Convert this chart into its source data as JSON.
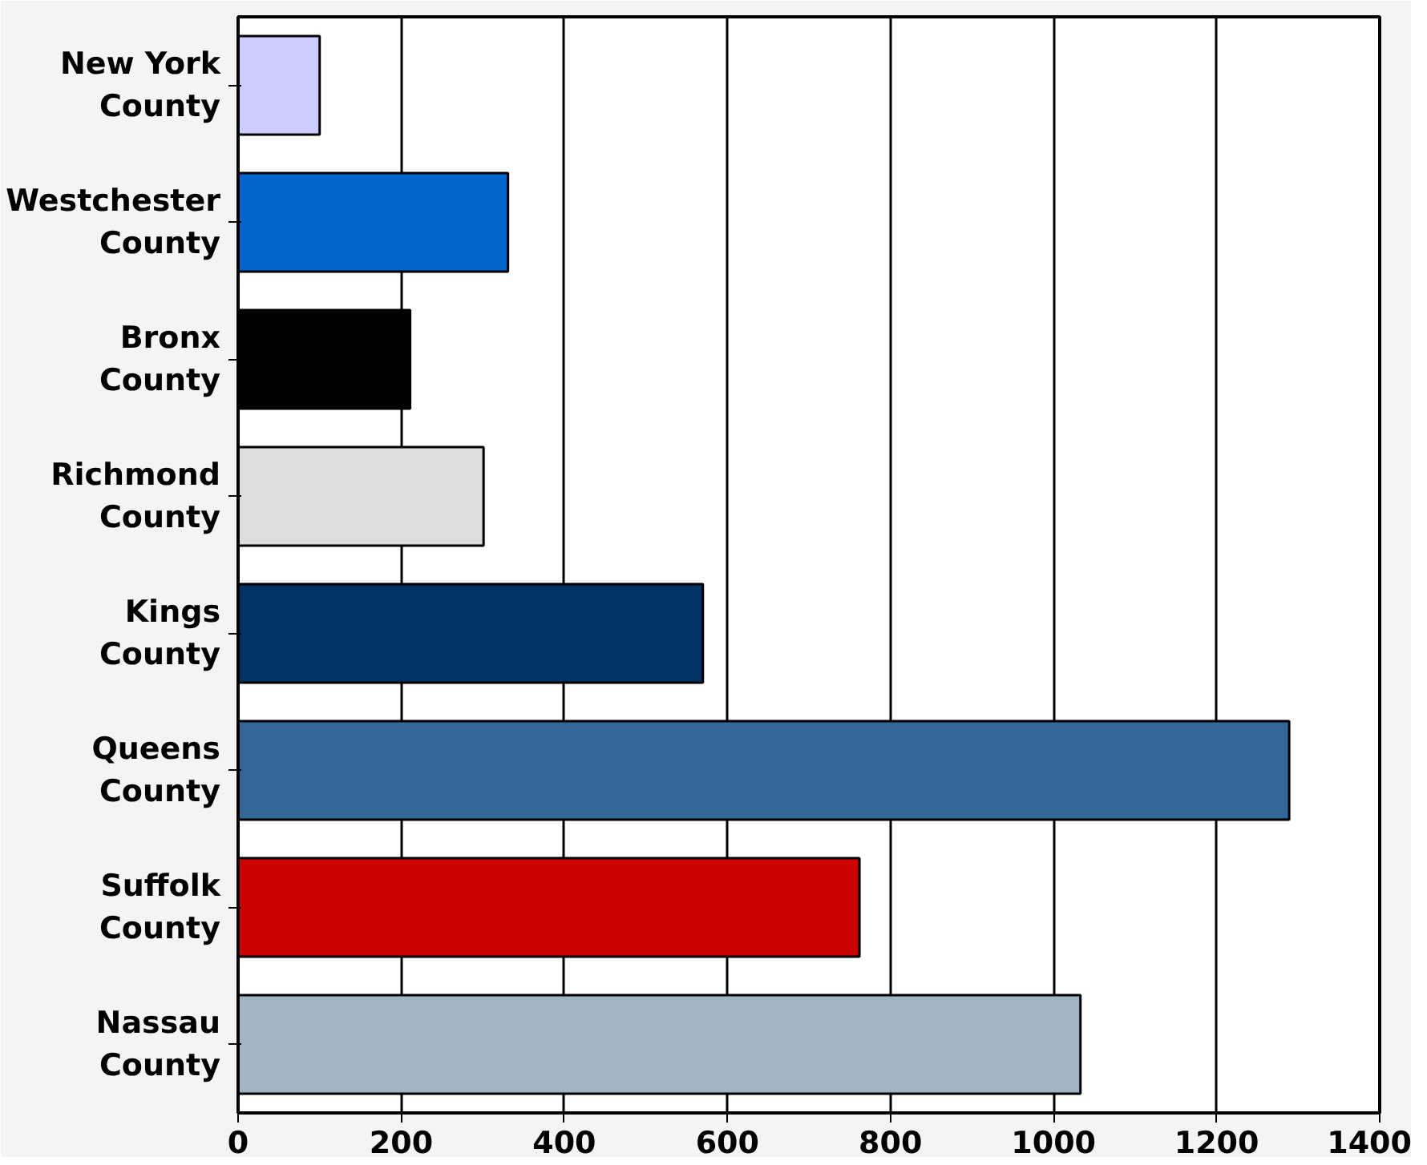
{
  "chart_data": {
    "type": "bar",
    "orientation": "horizontal",
    "categories": [
      "New York County",
      "Westchester County",
      "Bronx County",
      "Richmond County",
      "Kings County",
      "Queens County",
      "Suffolk County",
      "Nassau County"
    ],
    "values": [
      100,
      331,
      211,
      301,
      570,
      1289,
      762,
      1033
    ],
    "colors": [
      "#ccccff",
      "#0066cc",
      "#000000",
      "#dddddd",
      "#003366",
      "#336699",
      "#cc0000",
      "#a2b3c4"
    ],
    "xlim": [
      0,
      1400
    ],
    "xticks": [
      0,
      200,
      400,
      600,
      800,
      1000,
      1200,
      1400
    ],
    "grid": "x"
  }
}
